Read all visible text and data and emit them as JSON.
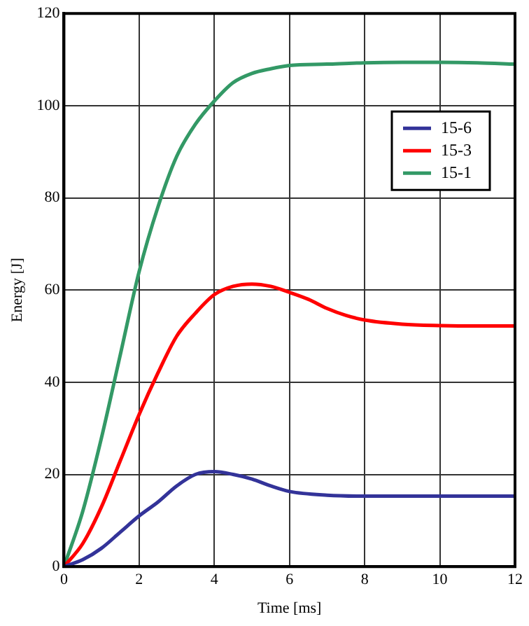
{
  "chart_data": {
    "type": "line",
    "xlabel": "Time [ms]",
    "ylabel": "Energy [J]",
    "xlim": [
      0,
      12
    ],
    "xticks": [
      0,
      2,
      4,
      6,
      8,
      10,
      12
    ],
    "ylim": [
      0,
      120
    ],
    "yticks": [
      0,
      20,
      40,
      60,
      80,
      100,
      120
    ],
    "grid": true,
    "legend": "top right",
    "marker": "none",
    "line_style": "solid",
    "series": [
      {
        "name": "15-6",
        "color": "#333399",
        "x": [
          0,
          0.5,
          1,
          1.5,
          2,
          2.5,
          3,
          3.5,
          4,
          4.5,
          5,
          5.5,
          6,
          7,
          8,
          10,
          12
        ],
        "values": [
          0,
          1.5,
          4,
          7.5,
          11,
          14,
          17.5,
          20,
          20.6,
          20,
          19,
          17.5,
          16.3,
          15.5,
          15.3,
          15.3,
          15.3
        ]
      },
      {
        "name": "15-3",
        "color": "#ff0000",
        "x": [
          0,
          0.5,
          1,
          1.5,
          2,
          2.5,
          3,
          3.5,
          4,
          4.5,
          5,
          5.5,
          6,
          6.5,
          7,
          7.5,
          8,
          9,
          10,
          11,
          12
        ],
        "values": [
          0,
          5,
          13,
          23,
          33,
          42,
          50,
          55,
          59,
          60.8,
          61.3,
          60.8,
          59.5,
          58,
          56,
          54.5,
          53.5,
          52.6,
          52.3,
          52.2,
          52.2
        ]
      },
      {
        "name": "15-1",
        "color": "#339966",
        "x": [
          0,
          0.5,
          1,
          1.5,
          2,
          2.5,
          3,
          3.5,
          4,
          4.5,
          5,
          5.5,
          6,
          7,
          8,
          9,
          10,
          11,
          12
        ],
        "values": [
          0,
          12,
          28,
          46,
          64,
          78,
          89,
          96,
          101,
          105,
          107,
          108,
          108.7,
          109,
          109.3,
          109.4,
          109.4,
          109.3,
          109
        ]
      }
    ]
  }
}
